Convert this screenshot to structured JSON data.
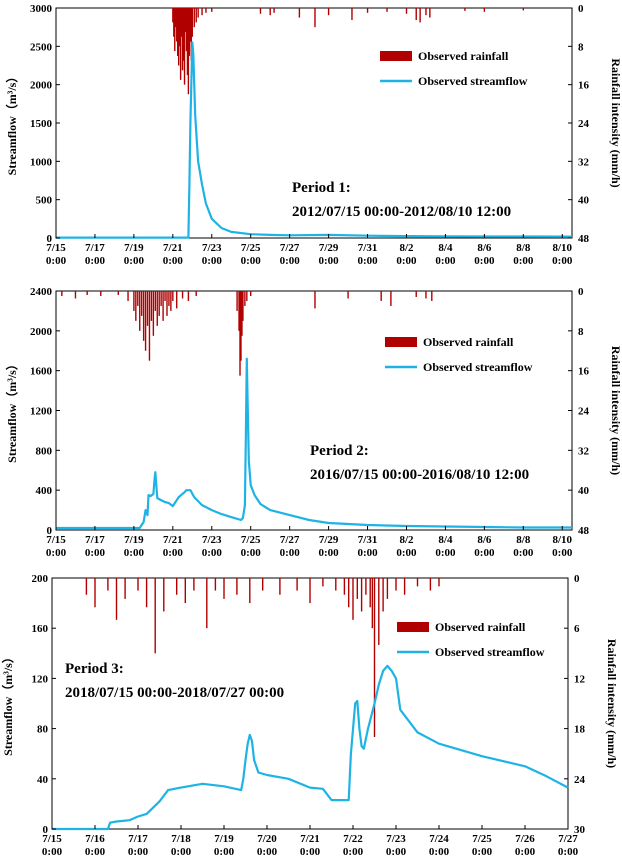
{
  "chart_data": [
    {
      "type": "line",
      "panel_title": "Period 1:",
      "panel_range": "2012/07/15 00:00-2012/08/10 12:00",
      "x_unit": "day",
      "x_start": "2012-07-15 0:00",
      "x_ticks": [
        "7/15",
        "7/17",
        "7/19",
        "7/21",
        "7/23",
        "7/25",
        "7/27",
        "7/29",
        "7/31",
        "8/2",
        "8/4",
        "8/6",
        "8/8",
        "8/10"
      ],
      "x_tick_time": "0:00",
      "xlim": [
        0,
        26.5
      ],
      "ylabel": "Streamflow（m³/s）",
      "ylim": [
        0,
        3000
      ],
      "yticks": [
        0,
        500,
        1000,
        1500,
        2000,
        2500,
        3000
      ],
      "y2label": "Rainfall intensity (mm/h)",
      "y2lim": [
        0,
        48
      ],
      "y2ticks": [
        0,
        8,
        16,
        24,
        32,
        40,
        48
      ],
      "y2_inverted": true,
      "legend": [
        "Observed rainfall",
        "Observed streamflow"
      ],
      "series": [
        {
          "name": "Observed streamflow",
          "color": "#1fb3e5",
          "x": [
            0,
            6.8,
            6.85,
            6.9,
            7.0,
            7.05,
            7.15,
            7.3,
            7.5,
            7.7,
            8,
            8.5,
            9,
            10,
            11,
            12,
            14,
            16,
            18,
            20,
            22,
            24,
            26.5
          ],
          "y": [
            5,
            5,
            700,
            1500,
            2550,
            2400,
            1600,
            1000,
            700,
            450,
            250,
            130,
            80,
            50,
            40,
            35,
            40,
            30,
            25,
            22,
            20,
            20,
            18
          ]
        },
        {
          "name": "Observed rainfall",
          "color": "#b00000",
          "x": [
            6.0,
            6.05,
            6.1,
            6.15,
            6.2,
            6.25,
            6.3,
            6.35,
            6.4,
            6.45,
            6.5,
            6.55,
            6.6,
            6.65,
            6.7,
            6.75,
            6.8,
            6.85,
            6.9,
            6.95,
            7.0,
            7.1,
            7.2,
            7.3,
            7.5,
            7.7,
            8.0,
            10.5,
            11.0,
            11.2,
            12.5,
            13.3,
            14.0,
            15.2,
            16.0,
            17.0,
            18.0,
            18.5,
            18.7,
            19.0,
            19.2,
            21.0,
            22.0,
            24.0
          ],
          "y": [
            3,
            6,
            9,
            4,
            7,
            10,
            12,
            8,
            15,
            6,
            13,
            11,
            16,
            5,
            9,
            14,
            18,
            10,
            7,
            11,
            6,
            4,
            3,
            2,
            1.5,
            1,
            0.8,
            1.2,
            1.5,
            1.0,
            2.0,
            4.0,
            1.5,
            2.5,
            1.0,
            0.8,
            1.2,
            2.5,
            3.0,
            1.5,
            2.0,
            0.6,
            0.8,
            0.5
          ]
        }
      ]
    },
    {
      "type": "line",
      "panel_title": "Period 2:",
      "panel_range": "2016/07/15 00:00-2016/08/10 12:00",
      "x_unit": "day",
      "x_start": "2016-07-15 0:00",
      "x_ticks": [
        "7/15",
        "7/17",
        "7/19",
        "7/21",
        "7/23",
        "7/25",
        "7/27",
        "7/29",
        "7/31",
        "8/2",
        "8/4",
        "8/6",
        "8/8",
        "8/10"
      ],
      "x_tick_time": "0:00",
      "xlim": [
        0,
        26.5
      ],
      "ylabel": "Streamflow（m³/s）",
      "ylim": [
        0,
        2400
      ],
      "yticks": [
        0,
        400,
        800,
        1200,
        1600,
        2000,
        2400
      ],
      "y2label": "Rainfall intensity (mm/h)",
      "y2lim": [
        0,
        48
      ],
      "y2ticks": [
        0,
        8,
        16,
        24,
        32,
        40,
        48
      ],
      "y2_inverted": true,
      "legend": [
        "Observed rainfall",
        "Observed streamflow"
      ],
      "series": [
        {
          "name": "Observed streamflow",
          "color": "#1fb3e5",
          "x": [
            0,
            4.3,
            4.5,
            4.6,
            4.7,
            4.75,
            4.85,
            5.0,
            5.05,
            5.1,
            5.2,
            5.4,
            5.6,
            5.8,
            6.0,
            6.3,
            6.6,
            6.7,
            6.9,
            7.1,
            7.5,
            8.0,
            8.5,
            9.0,
            9.5,
            9.6,
            9.7,
            9.75,
            9.8,
            9.85,
            9.9,
            10.0,
            10.2,
            10.5,
            11.0,
            12.0,
            13.0,
            14.0,
            16.0,
            18.0,
            20.0,
            22.0,
            24.0,
            26.5
          ],
          "y": [
            20,
            20,
            80,
            200,
            150,
            350,
            340,
            360,
            480,
            580,
            320,
            300,
            280,
            270,
            240,
            330,
            380,
            400,
            400,
            330,
            250,
            200,
            160,
            130,
            100,
            120,
            250,
            900,
            1720,
            1200,
            700,
            450,
            350,
            260,
            200,
            150,
            100,
            70,
            50,
            40,
            35,
            30,
            25,
            25
          ]
        },
        {
          "name": "Observed rainfall",
          "color": "#b00000",
          "x": [
            0.3,
            1.0,
            1.6,
            2.3,
            3.2,
            3.7,
            4.0,
            4.1,
            4.2,
            4.3,
            4.4,
            4.5,
            4.6,
            4.7,
            4.8,
            4.9,
            5.0,
            5.1,
            5.2,
            5.3,
            5.4,
            5.5,
            5.6,
            5.7,
            5.8,
            5.9,
            6.0,
            6.2,
            6.5,
            6.8,
            7.2,
            9.3,
            9.4,
            9.45,
            9.5,
            9.55,
            9.6,
            9.7,
            9.8,
            10.0,
            13.3,
            15.0,
            16.7,
            17.2,
            18.5,
            19.0,
            19.3
          ],
          "y": [
            1.0,
            1.5,
            0.8,
            1.0,
            0.8,
            2.0,
            4.0,
            6.0,
            3.0,
            8.0,
            5.0,
            10.0,
            12.0,
            7.0,
            14.0,
            6.0,
            9.0,
            4.0,
            7.0,
            5.0,
            3.0,
            6.0,
            2.0,
            5.0,
            3.0,
            4.0,
            2.0,
            3.5,
            1.5,
            2.0,
            1.0,
            4.0,
            8.0,
            17.0,
            14.0,
            9.0,
            6.0,
            3.0,
            2.0,
            1.0,
            3.5,
            1.5,
            2.0,
            3.0,
            1.2,
            1.5,
            2.0
          ]
        }
      ]
    },
    {
      "type": "line",
      "panel_title": "Period 3:",
      "panel_range": "2018/07/15 00:00-2018/07/27 00:00",
      "x_unit": "day",
      "x_start": "2018-07-15 0:00",
      "x_ticks": [
        "7/15",
        "7/16",
        "7/17",
        "7/18",
        "7/19",
        "7/20",
        "7/21",
        "7/22",
        "7/23",
        "7/24",
        "7/25",
        "7/26",
        "7/27"
      ],
      "x_tick_time": "0:00",
      "xlim": [
        0,
        12
      ],
      "ylabel": "Streamflow（m³/s）",
      "ylim": [
        0,
        200
      ],
      "yticks": [
        0,
        40,
        80,
        120,
        160,
        200
      ],
      "y2label": "Rainfall intensity (mm/h)",
      "y2lim": [
        0,
        30
      ],
      "y2ticks": [
        0,
        6,
        12,
        18,
        24,
        30
      ],
      "y2_inverted": true,
      "legend": [
        "Observed rainfall",
        "Observed streamflow"
      ],
      "series": [
        {
          "name": "Observed streamflow",
          "color": "#1fb3e5",
          "x": [
            0,
            1.3,
            1.35,
            1.5,
            1.8,
            2.0,
            2.2,
            2.5,
            2.7,
            3.0,
            3.5,
            4.0,
            4.4,
            4.45,
            4.5,
            4.55,
            4.6,
            4.65,
            4.7,
            4.8,
            5.0,
            5.5,
            6.0,
            6.3,
            6.5,
            6.8,
            6.9,
            6.95,
            7.05,
            7.1,
            7.15,
            7.2,
            7.25,
            7.35,
            7.5,
            7.6,
            7.7,
            7.8,
            7.9,
            8.0,
            8.1,
            8.5,
            9.0,
            10.0,
            11.0,
            11.5,
            12.0
          ],
          "y": [
            0,
            0,
            5,
            6,
            7,
            10,
            12,
            22,
            31,
            33,
            36,
            34,
            31,
            40,
            55,
            68,
            75,
            70,
            55,
            45,
            43,
            40,
            33,
            32,
            23,
            23,
            23,
            60,
            100,
            102,
            80,
            66,
            64,
            80,
            100,
            115,
            126,
            130,
            126,
            120,
            95,
            77,
            68,
            58,
            50,
            42,
            33
          ]
        },
        {
          "name": "Observed rainfall",
          "color": "#b00000",
          "x": [
            0.8,
            1.0,
            1.3,
            1.5,
            1.7,
            2.0,
            2.2,
            2.4,
            2.6,
            2.9,
            3.1,
            3.3,
            3.6,
            3.8,
            4.0,
            4.3,
            4.6,
            4.9,
            5.3,
            5.7,
            6.0,
            6.3,
            6.6,
            6.8,
            6.9,
            7.0,
            7.1,
            7.2,
            7.3,
            7.4,
            7.45,
            7.5,
            7.6,
            7.7,
            7.8,
            8.0,
            8.2,
            8.5,
            8.8,
            9.0
          ],
          "y": [
            2.0,
            3.5,
            1.5,
            5.0,
            2.5,
            1.5,
            3.5,
            9.0,
            4.0,
            2.0,
            3.0,
            1.5,
            6.0,
            1.5,
            2.5,
            2.0,
            3.0,
            1.5,
            2.0,
            1.5,
            3.0,
            1.0,
            1.5,
            2.0,
            3.5,
            5.0,
            2.5,
            4.0,
            2.0,
            3.5,
            6.0,
            19.0,
            8.0,
            4.0,
            2.5,
            1.5,
            2.0,
            1.0,
            1.5,
            1.0
          ]
        }
      ]
    }
  ]
}
